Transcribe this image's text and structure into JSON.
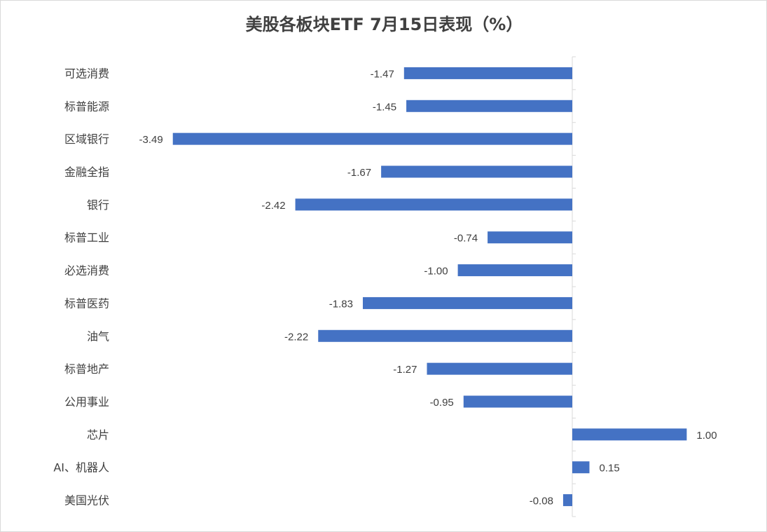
{
  "chart_data": {
    "type": "bar",
    "orientation": "horizontal",
    "title": "美股各板块ETF  7月15日表现（%）",
    "categories": [
      "可选消费",
      "标普能源",
      "区域银行",
      "金融全指",
      "银行",
      "标普工业",
      "必选消费",
      "标普医药",
      "油气",
      "标普地产",
      "公用事业",
      "芯片",
      "AI、机器人",
      "美国光伏"
    ],
    "values": [
      -1.47,
      -1.45,
      -3.49,
      -1.67,
      -2.42,
      -0.74,
      -1.0,
      -1.83,
      -2.22,
      -1.27,
      -0.95,
      1.0,
      0.15,
      -0.08
    ],
    "value_labels": [
      "-1.47",
      "-1.45",
      "-3.49",
      "-1.67",
      "-2.42",
      "-0.74",
      "-1.00",
      "-1.83",
      "-2.22",
      "-1.27",
      "-0.95",
      "1.00",
      "0.15",
      "-0.08"
    ],
    "bar_color": "#4472c4",
    "grid": false,
    "legend": "none"
  }
}
